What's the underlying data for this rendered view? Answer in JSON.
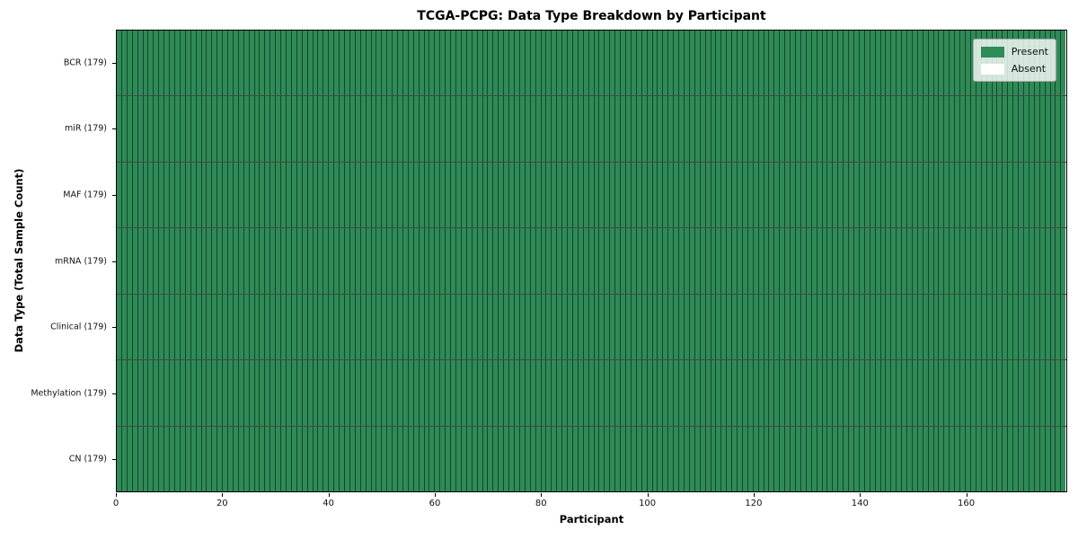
{
  "chart_data": {
    "type": "heatmap",
    "title": "TCGA-PCPG: Data Type Breakdown by Participant",
    "xlabel": "Participant",
    "ylabel": "Data Type (Total Sample Count)",
    "x_ticks": [
      0,
      20,
      40,
      60,
      80,
      100,
      120,
      140,
      160
    ],
    "x_range": [
      0,
      179
    ],
    "n_participants": 179,
    "rows": [
      {
        "label": "BCR (179)",
        "data_type": "BCR",
        "total_samples": 179,
        "present": 179,
        "absent": 0
      },
      {
        "label": "miR (179)",
        "data_type": "miR",
        "total_samples": 179,
        "present": 179,
        "absent": 0
      },
      {
        "label": "MAF (179)",
        "data_type": "MAF",
        "total_samples": 179,
        "present": 179,
        "absent": 0
      },
      {
        "label": "mRNA (179)",
        "data_type": "mRNA",
        "total_samples": 179,
        "present": 179,
        "absent": 0
      },
      {
        "label": "Clinical (179)",
        "data_type": "Clinical",
        "total_samples": 179,
        "present": 179,
        "absent": 0
      },
      {
        "label": "Methylation (179)",
        "data_type": "Methylation",
        "total_samples": 179,
        "present": 179,
        "absent": 0
      },
      {
        "label": "CN (179)",
        "data_type": "CN",
        "total_samples": 179,
        "present": 179,
        "absent": 0
      }
    ],
    "legend": {
      "position": "upper right",
      "entries": [
        {
          "label": "Present",
          "color": "#2e8b57"
        },
        {
          "label": "Absent",
          "color": "#ffffff"
        }
      ]
    },
    "colors": {
      "present": "#2e8b57",
      "absent": "#ffffff"
    },
    "grid": false
  }
}
